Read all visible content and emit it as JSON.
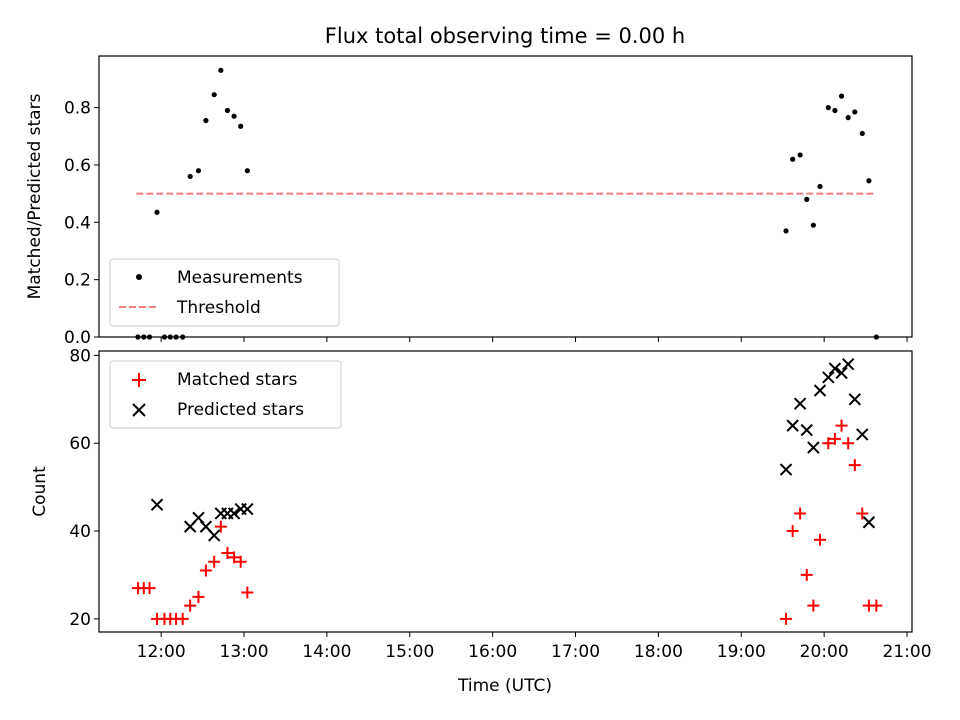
{
  "chart_data": {
    "title": "Flux total observing time = 0.00 h",
    "xlabel": "Time (UTC)",
    "x_ticks": [
      "12:00",
      "13:00",
      "14:00",
      "15:00",
      "16:00",
      "17:00",
      "18:00",
      "19:00",
      "20:00",
      "21:00"
    ],
    "x_range_hours": [
      11.25,
      21.06
    ],
    "grid": false,
    "panels": [
      {
        "type": "scatter",
        "ylabel": "Matched/Predicted stars",
        "ylim": [
          0,
          0.98
        ],
        "y_ticks": [
          "0.0",
          "0.2",
          "0.4",
          "0.6",
          "0.8"
        ],
        "y_tick_values": [
          0,
          0.2,
          0.4,
          0.6,
          0.8
        ],
        "legend_placement": "lower-left",
        "series": [
          {
            "name": "Measurements",
            "kind": "dot",
            "color": "#000000",
            "points": [
              [
                11.72,
                0.0
              ],
              [
                11.79,
                0.0
              ],
              [
                11.86,
                0.0
              ],
              [
                11.95,
                0.435
              ],
              [
                12.04,
                0.0
              ],
              [
                12.11,
                0.0
              ],
              [
                12.18,
                0.0
              ],
              [
                12.26,
                0.0
              ],
              [
                12.35,
                0.56
              ],
              [
                12.45,
                0.58
              ],
              [
                12.54,
                0.755
              ],
              [
                12.64,
                0.845
              ],
              [
                12.72,
                0.93
              ],
              [
                12.8,
                0.79
              ],
              [
                12.88,
                0.77
              ],
              [
                12.96,
                0.735
              ],
              [
                13.04,
                0.58
              ],
              [
                19.54,
                0.37
              ],
              [
                19.62,
                0.62
              ],
              [
                19.71,
                0.635
              ],
              [
                19.79,
                0.48
              ],
              [
                19.87,
                0.39
              ],
              [
                19.95,
                0.525
              ],
              [
                20.05,
                0.8
              ],
              [
                20.13,
                0.79
              ],
              [
                20.21,
                0.84
              ],
              [
                20.29,
                0.765
              ],
              [
                20.37,
                0.785
              ],
              [
                20.46,
                0.71
              ],
              [
                20.54,
                0.545
              ],
              [
                20.63,
                0.0
              ]
            ]
          },
          {
            "name": "Threshold",
            "kind": "dashed-line",
            "color": "#f08080",
            "x": [
              11.7,
              20.63
            ],
            "y": [
              0.5,
              0.5
            ]
          }
        ]
      },
      {
        "type": "scatter",
        "ylabel": "Count",
        "ylim": [
          17,
          81
        ],
        "y_ticks": [
          "20",
          "40",
          "60",
          "80"
        ],
        "y_tick_values": [
          20,
          40,
          60,
          80
        ],
        "legend_placement": "upper-left",
        "series": [
          {
            "name": "Matched stars",
            "kind": "plus",
            "color": "#ff0000",
            "points": [
              [
                11.72,
                27
              ],
              [
                11.79,
                27
              ],
              [
                11.86,
                27
              ],
              [
                11.95,
                20
              ],
              [
                12.04,
                20
              ],
              [
                12.11,
                20
              ],
              [
                12.18,
                20
              ],
              [
                12.26,
                20
              ],
              [
                12.35,
                23
              ],
              [
                12.45,
                25
              ],
              [
                12.54,
                31
              ],
              [
                12.64,
                33
              ],
              [
                12.72,
                41
              ],
              [
                12.8,
                35
              ],
              [
                12.88,
                34
              ],
              [
                12.96,
                33
              ],
              [
                13.04,
                26
              ],
              [
                19.54,
                20
              ],
              [
                19.62,
                40
              ],
              [
                19.71,
                44
              ],
              [
                19.79,
                30
              ],
              [
                19.87,
                23
              ],
              [
                19.95,
                38
              ],
              [
                20.05,
                60
              ],
              [
                20.13,
                61
              ],
              [
                20.21,
                64
              ],
              [
                20.29,
                60
              ],
              [
                20.37,
                55
              ],
              [
                20.46,
                44
              ],
              [
                20.54,
                23
              ],
              [
                20.63,
                23
              ]
            ]
          },
          {
            "name": "Predicted stars",
            "kind": "x",
            "color": "#000000",
            "points": [
              [
                11.95,
                46
              ],
              [
                12.35,
                41
              ],
              [
                12.45,
                43
              ],
              [
                12.54,
                41
              ],
              [
                12.64,
                39
              ],
              [
                12.72,
                44
              ],
              [
                12.8,
                44
              ],
              [
                12.88,
                44
              ],
              [
                12.96,
                45
              ],
              [
                13.04,
                45
              ],
              [
                19.54,
                54
              ],
              [
                19.62,
                64
              ],
              [
                19.71,
                69
              ],
              [
                19.79,
                63
              ],
              [
                19.87,
                59
              ],
              [
                19.95,
                72
              ],
              [
                20.05,
                75
              ],
              [
                20.13,
                77
              ],
              [
                20.21,
                76
              ],
              [
                20.29,
                78
              ],
              [
                20.37,
                70
              ],
              [
                20.46,
                62
              ],
              [
                20.54,
                42
              ]
            ]
          }
        ]
      }
    ]
  }
}
